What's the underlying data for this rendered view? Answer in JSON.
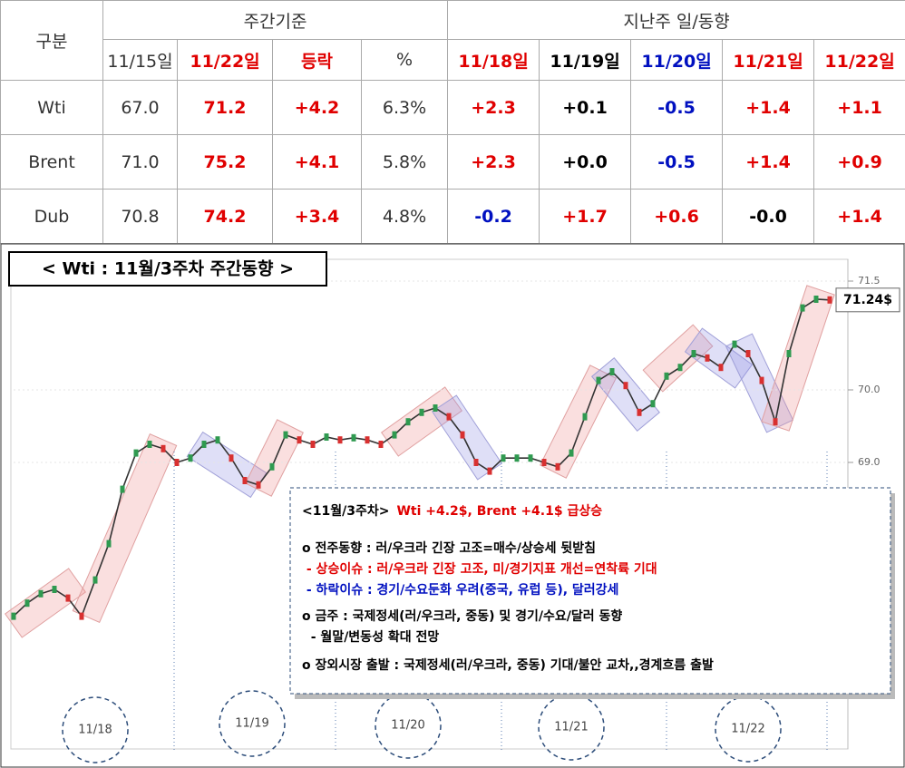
{
  "table": {
    "header_row1": [
      "구분",
      "주간기준",
      "지난주 일/동향"
    ],
    "header_row2": [
      "11/15일",
      "11/22일",
      "등락",
      "%",
      "11/18일",
      "11/19일",
      "11/20일",
      "11/21일",
      "11/22일"
    ],
    "rows": [
      [
        "Wti",
        "67.0",
        "71.2",
        "+4.2",
        "6.3%",
        "+2.3",
        "+0.1",
        "-0.5",
        "+1.4",
        "+1.1"
      ],
      [
        "Brent",
        "71.0",
        "75.2",
        "+4.1",
        "5.8%",
        "+2.3",
        "+0.0",
        "-0.5",
        "+1.4",
        "+0.9"
      ],
      [
        "Dub",
        "70.8",
        "74.2",
        "+3.4",
        "4.8%",
        "-0.2",
        "+1.7",
        "+0.6",
        "-0.0",
        "+1.4"
      ]
    ]
  },
  "chart_data": {
    "type": "line",
    "title": "< Wti : 11월/3주차 주간동향 >",
    "series": [
      {
        "name": "Wti",
        "color": "#333333",
        "values": [
          66.88,
          67.06,
          67.19,
          67.25,
          67.13,
          66.88,
          67.38,
          67.88,
          68.63,
          69.13,
          69.25,
          69.19,
          69.0,
          69.06,
          69.25,
          69.31,
          69.06,
          68.75,
          68.69,
          68.94,
          69.38,
          69.31,
          69.25,
          69.35,
          69.31,
          69.34,
          69.31,
          69.25,
          69.38,
          69.56,
          69.69,
          69.75,
          69.63,
          69.38,
          69.0,
          68.88,
          69.06,
          69.06,
          69.06,
          69.0,
          68.94,
          69.13,
          69.63,
          70.13,
          70.25,
          70.06,
          69.69,
          69.81,
          70.19,
          70.31,
          70.5,
          70.44,
          70.31,
          70.63,
          70.5,
          70.13,
          69.56,
          70.5,
          71.13,
          71.25,
          71.24
        ]
      }
    ],
    "price_tag": {
      "value": 71.24,
      "label": "71.24$"
    },
    "ylim": [
      65.125,
      71.75
    ],
    "yticks": [
      {
        "value": 69,
        "label": "69.0"
      },
      {
        "value": 70,
        "label": "70.0"
      },
      {
        "value": 71.5,
        "label": "71.5"
      }
    ],
    "day_labels": [
      "11/18",
      "11/19",
      "11/20",
      "11/21",
      "11/22"
    ],
    "note": {
      "heading": "<11월/3주차>",
      "headline": "Wti +4.2$, Brent +4.1$ 급상승",
      "lines": [
        "o 전주동향 : 러/우크라 긴장 고조=매수/상승세 뒷받침",
        " - 상승이슈 : 러/우크라 긴장 고조, 미/경기지표 개선=연착륙 기대",
        " - 하락이슈 : 경기/수요둔화 우려(중국, 유럽 등), 달러강세",
        "o 금주 : 국제정세(러/우크라, 중동) 및 경기/수요/달러 동향",
        "  - 월말/변동성 확대 전망",
        "o 장외시장 출발 : 국제정세(러/우크라, 중동) 기대/불안 교차,,경계흐름 출발"
      ]
    }
  }
}
